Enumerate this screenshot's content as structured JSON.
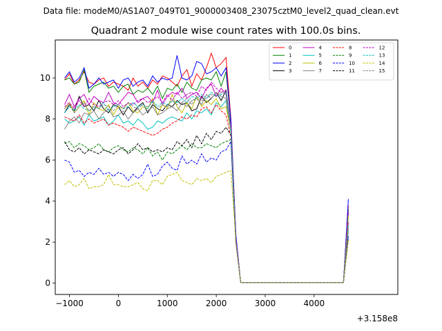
{
  "suptitle": "Data file: modeM0/AS1A07_049T01_9000003408_23075cztM0_level2_quad_clean.evt",
  "chart_data": {
    "type": "line",
    "title": "Quadrant 2 module wise count rates with 100.0s bins.",
    "xlabel": "",
    "ylabel": "",
    "x_offset_label": "+3.158e8",
    "xlim": [
      -1290,
      5710
    ],
    "ylim": [
      -0.55,
      11.85
    ],
    "xticks": [
      -1000,
      0,
      1000,
      2000,
      3000,
      4000
    ],
    "xtick_labels": [
      "−1000",
      "0",
      "1000",
      "2000",
      "3000",
      "4000"
    ],
    "yticks": [
      0,
      2,
      4,
      6,
      8,
      10
    ],
    "ytick_labels": [
      "0",
      "2",
      "4",
      "6",
      "8",
      "10"
    ],
    "grid": false,
    "legend": {
      "position": "top-right",
      "columns": 4
    },
    "x": [
      -1100,
      -1000,
      -900,
      -800,
      -700,
      -600,
      -500,
      -400,
      -300,
      -200,
      -100,
      0,
      100,
      200,
      300,
      400,
      500,
      600,
      700,
      800,
      900,
      1000,
      1100,
      1200,
      1300,
      1400,
      1500,
      1600,
      1700,
      1800,
      1900,
      2000,
      2100,
      2200,
      2300,
      2400,
      2500,
      2600,
      2700,
      2800,
      2900,
      3000,
      3100,
      3200,
      3300,
      3400,
      3500,
      3600,
      3700,
      3800,
      3900,
      4000,
      4100,
      4200,
      4300,
      4400,
      4500,
      4600,
      4700
    ],
    "series": [
      {
        "name": "0",
        "color": "#ff0000",
        "dash": "solid",
        "values": [
          9.9,
          10.2,
          9.7,
          9.9,
          10.3,
          9.8,
          9.7,
          9.9,
          10.0,
          9.6,
          9.8,
          9.7,
          9.6,
          9.4,
          10.0,
          9.6,
          9.8,
          9.5,
          9.9,
          9.7,
          10.1,
          10.0,
          9.8,
          9.6,
          10.1,
          10.4,
          9.6,
          10.2,
          9.9,
          10.5,
          11.2,
          10.5,
          10.7,
          11.0,
          8.0,
          2.3,
          0.03,
          0.03,
          0.03,
          0.03,
          0.03,
          0.03,
          0.03,
          0.03,
          0.03,
          0.03,
          0.03,
          0.03,
          0.03,
          0.03,
          0.03,
          0.03,
          0.03,
          0.03,
          0.03,
          0.03,
          0.03,
          0.03,
          3.8
        ]
      },
      {
        "name": "1",
        "color": "#008000",
        "dash": "solid",
        "values": [
          9.9,
          10.0,
          9.7,
          9.8,
          10.4,
          9.3,
          9.6,
          9.7,
          9.8,
          9.5,
          9.6,
          9.3,
          9.6,
          9.7,
          9.2,
          9.4,
          9.3,
          9.5,
          9.2,
          9.6,
          9.0,
          9.5,
          9.4,
          9.7,
          9.3,
          9.8,
          9.5,
          9.4,
          9.9,
          10.0,
          9.9,
          10.3,
          9.6,
          10.3,
          7.8,
          2.2,
          0.03,
          0.03,
          0.03,
          0.03,
          0.03,
          0.03,
          0.03,
          0.03,
          0.03,
          0.03,
          0.03,
          0.03,
          0.03,
          0.03,
          0.03,
          0.03,
          0.03,
          0.03,
          0.03,
          0.03,
          0.03,
          0.03,
          3.6
        ]
      },
      {
        "name": "2",
        "color": "#0000ff",
        "dash": "solid",
        "values": [
          10.0,
          10.3,
          9.8,
          10.0,
          10.5,
          9.5,
          9.7,
          10.0,
          9.7,
          9.8,
          9.9,
          9.5,
          9.9,
          10.0,
          9.6,
          9.8,
          9.9,
          9.6,
          10.1,
          9.8,
          10.0,
          9.9,
          10.0,
          11.1,
          10.0,
          9.9,
          10.1,
          10.8,
          10.7,
          10.2,
          10.3,
          10.5,
          10.1,
          10.5,
          7.9,
          2.4,
          0.03,
          0.03,
          0.03,
          0.03,
          0.03,
          0.03,
          0.03,
          0.03,
          0.03,
          0.03,
          0.03,
          0.03,
          0.03,
          0.03,
          0.03,
          0.03,
          0.03,
          0.03,
          0.03,
          0.03,
          0.03,
          0.03,
          4.1
        ]
      },
      {
        "name": "3",
        "color": "#000000",
        "dash": "solid",
        "values": [
          8.3,
          8.7,
          8.4,
          9.1,
          8.6,
          8.7,
          8.4,
          8.9,
          8.5,
          8.3,
          8.7,
          8.6,
          8.2,
          8.6,
          8.3,
          8.6,
          8.8,
          8.3,
          8.7,
          8.5,
          8.4,
          8.7,
          8.6,
          8.9,
          8.7,
          8.8,
          8.4,
          8.5,
          9.1,
          8.8,
          9.0,
          9.3,
          8.9,
          9.4,
          7.5,
          2.1,
          0.03,
          0.03,
          0.03,
          0.03,
          0.03,
          0.03,
          0.03,
          0.03,
          0.03,
          0.03,
          0.03,
          0.03,
          0.03,
          0.03,
          0.03,
          0.03,
          0.03,
          0.03,
          0.03,
          0.03,
          0.03,
          0.03,
          3.4
        ]
      },
      {
        "name": "4",
        "color": "#bf00bf",
        "dash": "solid",
        "values": [
          8.7,
          9.2,
          8.6,
          9.0,
          9.2,
          8.7,
          9.1,
          8.9,
          8.8,
          9.3,
          8.8,
          8.7,
          9.0,
          9.3,
          9.2,
          8.8,
          9.0,
          9.1,
          8.8,
          9.4,
          8.7,
          9.1,
          9.3,
          9.2,
          9.5,
          9.0,
          9.2,
          9.3,
          9.0,
          9.5,
          9.7,
          9.1,
          9.5,
          9.2,
          7.6,
          2.2,
          0.03,
          0.03,
          0.03,
          0.03,
          0.03,
          0.03,
          0.03,
          0.03,
          0.03,
          0.03,
          0.03,
          0.03,
          0.03,
          0.03,
          0.03,
          0.03,
          0.03,
          0.03,
          0.03,
          0.03,
          0.03,
          0.03,
          3.5
        ]
      },
      {
        "name": "5",
        "color": "#00bfbf",
        "dash": "solid",
        "values": [
          8.0,
          7.8,
          7.9,
          8.1,
          7.7,
          8.2,
          7.9,
          8.0,
          8.1,
          7.7,
          7.9,
          8.2,
          7.8,
          7.9,
          7.7,
          8.0,
          7.8,
          7.5,
          7.6,
          7.9,
          7.8,
          8.0,
          8.1,
          8.0,
          7.9,
          8.3,
          8.0,
          8.4,
          8.3,
          8.5,
          8.2,
          8.8,
          8.6,
          8.9,
          7.3,
          2.0,
          0.03,
          0.03,
          0.03,
          0.03,
          0.03,
          0.03,
          0.03,
          0.03,
          0.03,
          0.03,
          0.03,
          0.03,
          0.03,
          0.03,
          0.03,
          0.03,
          0.03,
          0.03,
          0.03,
          0.03,
          0.03,
          0.03,
          3.2
        ]
      },
      {
        "name": "6",
        "color": "#bfbf00",
        "dash": "solid",
        "values": [
          8.5,
          8.8,
          8.3,
          8.6,
          8.9,
          8.2,
          8.8,
          8.5,
          8.4,
          8.7,
          8.2,
          8.6,
          8.5,
          8.8,
          8.4,
          8.3,
          8.6,
          8.5,
          9.0,
          8.2,
          8.7,
          8.5,
          9.2,
          8.6,
          8.3,
          8.8,
          8.5,
          9.1,
          8.6,
          8.9,
          8.7,
          9.0,
          8.5,
          8.6,
          7.4,
          2.0,
          0.03,
          0.03,
          0.03,
          0.03,
          0.03,
          0.03,
          0.03,
          0.03,
          0.03,
          0.03,
          0.03,
          0.03,
          0.03,
          0.03,
          0.03,
          0.03,
          0.03,
          0.03,
          0.03,
          0.03,
          0.03,
          0.03,
          3.3
        ]
      },
      {
        "name": "7",
        "color": "#808080",
        "dash": "solid",
        "values": [
          7.5,
          7.9,
          8.1,
          7.8,
          8.3,
          8.2,
          8.4,
          8.0,
          8.3,
          8.5,
          8.1,
          8.2,
          8.4,
          8.0,
          8.3,
          8.5,
          8.2,
          8.4,
          8.6,
          8.2,
          8.3,
          8.5,
          8.6,
          8.4,
          8.8,
          8.6,
          8.9,
          9.0,
          8.7,
          9.2,
          9.0,
          9.3,
          9.1,
          9.0,
          7.4,
          2.1,
          0.03,
          0.03,
          0.03,
          0.03,
          0.03,
          0.03,
          0.03,
          0.03,
          0.03,
          0.03,
          0.03,
          0.03,
          0.03,
          0.03,
          0.03,
          0.03,
          0.03,
          0.03,
          0.03,
          0.03,
          0.03,
          0.03,
          3.0
        ]
      },
      {
        "name": "8",
        "color": "#ff0000",
        "dash": "dashed",
        "values": [
          8.1,
          8.0,
          7.9,
          8.2,
          7.8,
          8.0,
          7.8,
          7.9,
          8.0,
          7.7,
          7.8,
          7.7,
          7.6,
          7.4,
          7.6,
          7.5,
          7.4,
          7.3,
          7.2,
          7.3,
          7.5,
          7.6,
          7.8,
          7.9,
          8.1,
          8.0,
          8.2,
          8.1,
          8.5,
          8.6,
          8.3,
          8.7,
          8.4,
          8.2,
          7.1,
          2.0,
          0.03,
          0.03,
          0.03,
          0.03,
          0.03,
          0.03,
          0.03,
          0.03,
          0.03,
          0.03,
          0.03,
          0.03,
          0.03,
          0.03,
          0.03,
          0.03,
          0.03,
          0.03,
          0.03,
          0.03,
          0.03,
          0.03,
          2.9
        ]
      },
      {
        "name": "9",
        "color": "#008000",
        "dash": "dashed",
        "values": [
          6.8,
          6.9,
          6.6,
          6.8,
          6.7,
          6.5,
          6.6,
          6.8,
          6.5,
          6.4,
          6.6,
          6.7,
          6.5,
          6.4,
          6.6,
          6.5,
          6.3,
          6.6,
          6.2,
          6.4,
          6.0,
          6.4,
          6.3,
          6.5,
          6.7,
          6.5,
          6.8,
          6.6,
          6.6,
          6.8,
          6.7,
          6.6,
          6.8,
          6.9,
          7.0,
          2.0,
          0.03,
          0.03,
          0.03,
          0.03,
          0.03,
          0.03,
          0.03,
          0.03,
          0.03,
          0.03,
          0.03,
          0.03,
          0.03,
          0.03,
          0.03,
          0.03,
          0.03,
          0.03,
          0.03,
          0.03,
          0.03,
          0.03,
          2.6
        ]
      },
      {
        "name": "10",
        "color": "#0000ff",
        "dash": "dashed",
        "values": [
          6.0,
          5.9,
          5.4,
          5.5,
          5.2,
          5.4,
          5.3,
          5.6,
          5.3,
          5.4,
          5.2,
          5.4,
          5.3,
          5.0,
          5.3,
          5.1,
          5.3,
          5.8,
          5.2,
          5.3,
          5.7,
          5.9,
          5.6,
          5.5,
          6.2,
          5.8,
          6.0,
          5.8,
          6.3,
          5.9,
          6.1,
          6.0,
          6.4,
          6.5,
          6.9,
          2.0,
          0.03,
          0.03,
          0.03,
          0.03,
          0.03,
          0.03,
          0.03,
          0.03,
          0.03,
          0.03,
          0.03,
          0.03,
          0.03,
          0.03,
          0.03,
          0.03,
          0.03,
          0.03,
          0.03,
          0.03,
          0.03,
          0.03,
          2.3
        ]
      },
      {
        "name": "11",
        "color": "#000000",
        "dash": "dashed",
        "values": [
          6.9,
          6.5,
          6.4,
          6.6,
          6.3,
          6.5,
          6.4,
          6.3,
          6.5,
          6.4,
          6.3,
          6.5,
          6.6,
          6.3,
          6.5,
          6.8,
          6.5,
          6.6,
          6.4,
          6.5,
          6.4,
          6.6,
          6.5,
          6.9,
          6.7,
          7.0,
          6.6,
          7.2,
          6.8,
          7.3,
          7.0,
          7.4,
          7.3,
          7.6,
          7.2,
          2.0,
          0.03,
          0.03,
          0.03,
          0.03,
          0.03,
          0.03,
          0.03,
          0.03,
          0.03,
          0.03,
          0.03,
          0.03,
          0.03,
          0.03,
          0.03,
          0.03,
          0.03,
          0.03,
          0.03,
          0.03,
          0.03,
          0.03,
          2.2
        ]
      },
      {
        "name": "12",
        "color": "#bf00bf",
        "dash": "dashed",
        "values": [
          8.6,
          8.8,
          8.5,
          8.9,
          8.6,
          9.0,
          8.7,
          8.6,
          8.8,
          8.9,
          8.7,
          8.9,
          8.6,
          8.8,
          8.7,
          8.9,
          9.0,
          8.8,
          8.9,
          9.1,
          8.8,
          9.2,
          8.9,
          9.3,
          9.0,
          9.2,
          9.3,
          9.1,
          9.6,
          9.4,
          9.8,
          9.5,
          9.3,
          9.4,
          7.6,
          2.1,
          0.03,
          0.03,
          0.03,
          0.03,
          0.03,
          0.03,
          0.03,
          0.03,
          0.03,
          0.03,
          0.03,
          0.03,
          0.03,
          0.03,
          0.03,
          0.03,
          0.03,
          0.03,
          0.03,
          0.03,
          0.03,
          0.03,
          3.0
        ]
      },
      {
        "name": "13",
        "color": "#00bfbf",
        "dash": "dashed",
        "values": [
          8.3,
          8.6,
          8.4,
          8.7,
          8.5,
          8.4,
          8.6,
          8.5,
          8.8,
          8.4,
          8.6,
          8.7,
          8.5,
          8.6,
          8.8,
          8.6,
          8.7,
          8.5,
          8.9,
          8.6,
          8.8,
          8.7,
          8.9,
          8.8,
          9.0,
          8.8,
          9.1,
          9.0,
          9.2,
          9.0,
          9.3,
          9.1,
          9.2,
          9.3,
          7.4,
          2.0,
          0.03,
          0.03,
          0.03,
          0.03,
          0.03,
          0.03,
          0.03,
          0.03,
          0.03,
          0.03,
          0.03,
          0.03,
          0.03,
          0.03,
          0.03,
          0.03,
          0.03,
          0.03,
          0.03,
          0.03,
          0.03,
          0.03,
          2.8
        ]
      },
      {
        "name": "14",
        "color": "#bfbf00",
        "dash": "dashed",
        "values": [
          4.8,
          5.0,
          4.7,
          4.8,
          5.1,
          4.6,
          4.7,
          4.7,
          4.8,
          5.3,
          4.8,
          4.8,
          4.7,
          4.7,
          4.8,
          4.9,
          4.6,
          4.5,
          5.0,
          5.0,
          4.8,
          5.2,
          5.3,
          5.4,
          5.0,
          4.9,
          4.8,
          5.1,
          5.0,
          5.1,
          4.9,
          5.2,
          5.3,
          5.4,
          5.5,
          2.0,
          0.03,
          0.03,
          0.03,
          0.03,
          0.03,
          0.03,
          0.03,
          0.03,
          0.03,
          0.03,
          0.03,
          0.03,
          0.03,
          0.03,
          0.03,
          0.03,
          0.03,
          0.03,
          0.03,
          0.03,
          0.03,
          0.03,
          2.1
        ]
      },
      {
        "name": "15",
        "color": "#808080",
        "dash": "dashed",
        "values": [
          8.5,
          8.7,
          8.3,
          8.6,
          8.8,
          8.4,
          8.6,
          8.5,
          8.7,
          8.6,
          8.4,
          8.7,
          8.5,
          8.8,
          8.6,
          8.5,
          8.7,
          8.6,
          8.8,
          8.5,
          8.7,
          8.6,
          8.9,
          8.7,
          8.8,
          9.0,
          8.7,
          9.1,
          8.9,
          9.0,
          9.2,
          9.1,
          9.3,
          9.2,
          7.5,
          2.1,
          0.03,
          0.03,
          0.03,
          0.03,
          0.03,
          0.03,
          0.03,
          0.03,
          0.03,
          0.03,
          0.03,
          0.03,
          0.03,
          0.03,
          0.03,
          0.03,
          0.03,
          0.03,
          0.03,
          0.03,
          0.03,
          0.03,
          2.7
        ]
      }
    ]
  }
}
